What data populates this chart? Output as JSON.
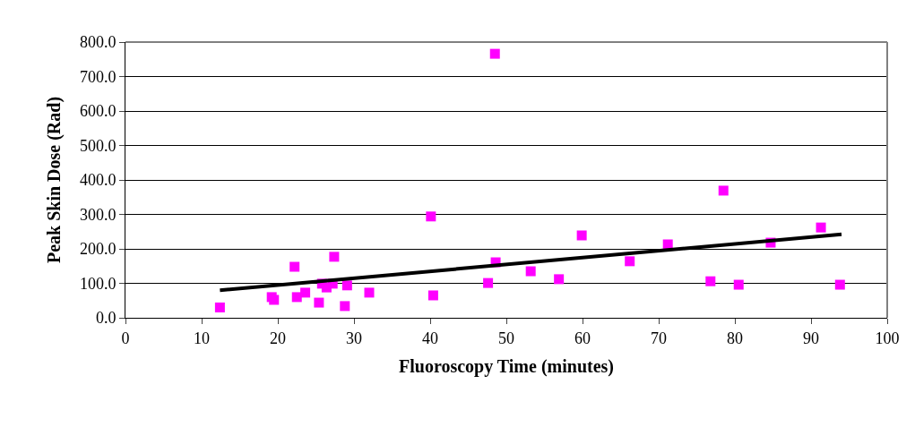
{
  "chart_data": {
    "type": "scatter",
    "xlabel": "Fluoroscopy Time (minutes)",
    "ylabel": "Peak Skin Dose (Rad)",
    "xlim": [
      0,
      100
    ],
    "xticks": [
      0,
      10,
      20,
      30,
      40,
      50,
      60,
      70,
      80,
      90,
      100
    ],
    "ylim": [
      0,
      800
    ],
    "yticks": [
      {
        "value": 0,
        "label": "0.0"
      },
      {
        "value": 100,
        "label": "100.0"
      },
      {
        "value": 200,
        "label": "200.0"
      },
      {
        "value": 300,
        "label": "300.0"
      },
      {
        "value": 400,
        "label": "400.0"
      },
      {
        "value": 500,
        "label": "500.0"
      },
      {
        "value": 600,
        "label": "600.0"
      },
      {
        "value": 700,
        "label": "700.0"
      },
      {
        "value": 800,
        "label": "800.0"
      }
    ],
    "grid": "y",
    "series": [
      {
        "marker": "square",
        "color": "#ff00ff",
        "x": [
          12.4,
          19.2,
          19.5,
          22.2,
          22.5,
          23.6,
          25.4,
          25.8,
          26.4,
          27.2,
          27.4,
          28.8,
          29.1,
          32.0,
          40.1,
          40.4,
          47.6,
          48.6,
          48.5,
          53.2,
          56.9,
          59.9,
          66.2,
          71.2,
          76.8,
          78.5,
          80.5,
          84.7,
          91.3,
          93.8
        ],
        "values": [
          30,
          60,
          52,
          148,
          60,
          73,
          44,
          99,
          88,
          99,
          177,
          34,
          94,
          73,
          294,
          65,
          101,
          161,
          766,
          135,
          112,
          239,
          164,
          213,
          106,
          369,
          96,
          218,
          262,
          96
        ]
      },
      {
        "type": "line",
        "color": "#000000",
        "x": [
          12.4,
          94
        ],
        "values": [
          80,
          242
        ]
      }
    ]
  }
}
